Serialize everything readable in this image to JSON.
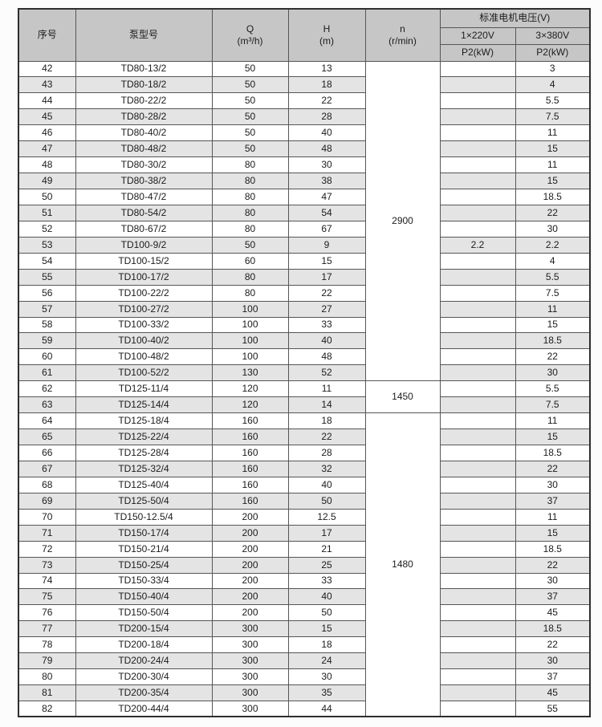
{
  "colors": {
    "page_bg": "#fcfcfc",
    "header_bg": "#c5c6c5",
    "stripe_bg": "#e4e4e4",
    "row_bg": "#ffffff",
    "border": "#565656",
    "outer_border": "#2e2e2e",
    "text": "#1c1c1c"
  },
  "table": {
    "headers": {
      "col_serial": "序号",
      "col_model": "泵型号",
      "col_q_line1": "Q",
      "col_q_line2": "(m³/h)",
      "col_h_line1": "H",
      "col_h_line2": "(m)",
      "col_n_line1": "n",
      "col_n_line2": "(r/min)",
      "voltage_group": "标准电机电压(V)",
      "voltage_1": "1×220V",
      "voltage_3": "3×380V",
      "p2_label_1": "P2(kW)",
      "p2_label_2": "P2(kW)"
    },
    "n_blocks": [
      {
        "value": "2900",
        "span": 20
      },
      {
        "value": "1450",
        "span": 2
      },
      {
        "value": "1480",
        "span": 19
      }
    ],
    "rows": [
      {
        "no": "42",
        "model": "TD80-13/2",
        "q": "50",
        "h": "13",
        "p220": "",
        "p380": "3"
      },
      {
        "no": "43",
        "model": "TD80-18/2",
        "q": "50",
        "h": "18",
        "p220": "",
        "p380": "4"
      },
      {
        "no": "44",
        "model": "TD80-22/2",
        "q": "50",
        "h": "22",
        "p220": "",
        "p380": "5.5"
      },
      {
        "no": "45",
        "model": "TD80-28/2",
        "q": "50",
        "h": "28",
        "p220": "",
        "p380": "7.5"
      },
      {
        "no": "46",
        "model": "TD80-40/2",
        "q": "50",
        "h": "40",
        "p220": "",
        "p380": "11"
      },
      {
        "no": "47",
        "model": "TD80-48/2",
        "q": "50",
        "h": "48",
        "p220": "",
        "p380": "15"
      },
      {
        "no": "48",
        "model": "TD80-30/2",
        "q": "80",
        "h": "30",
        "p220": "",
        "p380": "11"
      },
      {
        "no": "49",
        "model": "TD80-38/2",
        "q": "80",
        "h": "38",
        "p220": "",
        "p380": "15"
      },
      {
        "no": "50",
        "model": "TD80-47/2",
        "q": "80",
        "h": "47",
        "p220": "",
        "p380": "18.5"
      },
      {
        "no": "51",
        "model": "TD80-54/2",
        "q": "80",
        "h": "54",
        "p220": "",
        "p380": "22"
      },
      {
        "no": "52",
        "model": "TD80-67/2",
        "q": "80",
        "h": "67",
        "p220": "",
        "p380": "30"
      },
      {
        "no": "53",
        "model": "TD100-9/2",
        "q": "50",
        "h": "9",
        "p220": "2.2",
        "p380": "2.2"
      },
      {
        "no": "54",
        "model": "TD100-15/2",
        "q": "60",
        "h": "15",
        "p220": "",
        "p380": "4"
      },
      {
        "no": "55",
        "model": "TD100-17/2",
        "q": "80",
        "h": "17",
        "p220": "",
        "p380": "5.5"
      },
      {
        "no": "56",
        "model": "TD100-22/2",
        "q": "80",
        "h": "22",
        "p220": "",
        "p380": "7.5"
      },
      {
        "no": "57",
        "model": "TD100-27/2",
        "q": "100",
        "h": "27",
        "p220": "",
        "p380": "11"
      },
      {
        "no": "58",
        "model": "TD100-33/2",
        "q": "100",
        "h": "33",
        "p220": "",
        "p380": "15"
      },
      {
        "no": "59",
        "model": "TD100-40/2",
        "q": "100",
        "h": "40",
        "p220": "",
        "p380": "18.5"
      },
      {
        "no": "60",
        "model": "TD100-48/2",
        "q": "100",
        "h": "48",
        "p220": "",
        "p380": "22"
      },
      {
        "no": "61",
        "model": "TD100-52/2",
        "q": "130",
        "h": "52",
        "p220": "",
        "p380": "30"
      },
      {
        "no": "62",
        "model": "TD125-11/4",
        "q": "120",
        "h": "11",
        "p220": "",
        "p380": "5.5"
      },
      {
        "no": "63",
        "model": "TD125-14/4",
        "q": "120",
        "h": "14",
        "p220": "",
        "p380": "7.5"
      },
      {
        "no": "64",
        "model": "TD125-18/4",
        "q": "160",
        "h": "18",
        "p220": "",
        "p380": "11"
      },
      {
        "no": "65",
        "model": "TD125-22/4",
        "q": "160",
        "h": "22",
        "p220": "",
        "p380": "15"
      },
      {
        "no": "66",
        "model": "TD125-28/4",
        "q": "160",
        "h": "28",
        "p220": "",
        "p380": "18.5"
      },
      {
        "no": "67",
        "model": "TD125-32/4",
        "q": "160",
        "h": "32",
        "p220": "",
        "p380": "22"
      },
      {
        "no": "68",
        "model": "TD125-40/4",
        "q": "160",
        "h": "40",
        "p220": "",
        "p380": "30"
      },
      {
        "no": "69",
        "model": "TD125-50/4",
        "q": "160",
        "h": "50",
        "p220": "",
        "p380": "37"
      },
      {
        "no": "70",
        "model": "TD150-12.5/4",
        "q": "200",
        "h": "12.5",
        "p220": "",
        "p380": "11"
      },
      {
        "no": "71",
        "model": "TD150-17/4",
        "q": "200",
        "h": "17",
        "p220": "",
        "p380": "15"
      },
      {
        "no": "72",
        "model": "TD150-21/4",
        "q": "200",
        "h": "21",
        "p220": "",
        "p380": "18.5"
      },
      {
        "no": "73",
        "model": "TD150-25/4",
        "q": "200",
        "h": "25",
        "p220": "",
        "p380": "22"
      },
      {
        "no": "74",
        "model": "TD150-33/4",
        "q": "200",
        "h": "33",
        "p220": "",
        "p380": "30"
      },
      {
        "no": "75",
        "model": "TD150-40/4",
        "q": "200",
        "h": "40",
        "p220": "",
        "p380": "37"
      },
      {
        "no": "76",
        "model": "TD150-50/4",
        "q": "200",
        "h": "50",
        "p220": "",
        "p380": "45"
      },
      {
        "no": "77",
        "model": "TD200-15/4",
        "q": "300",
        "h": "15",
        "p220": "",
        "p380": "18.5"
      },
      {
        "no": "78",
        "model": "TD200-18/4",
        "q": "300",
        "h": "18",
        "p220": "",
        "p380": "22"
      },
      {
        "no": "79",
        "model": "TD200-24/4",
        "q": "300",
        "h": "24",
        "p220": "",
        "p380": "30"
      },
      {
        "no": "80",
        "model": "TD200-30/4",
        "q": "300",
        "h": "30",
        "p220": "",
        "p380": "37"
      },
      {
        "no": "81",
        "model": "TD200-35/4",
        "q": "300",
        "h": "35",
        "p220": "",
        "p380": "45"
      },
      {
        "no": "82",
        "model": "TD200-44/4",
        "q": "300",
        "h": "44",
        "p220": "",
        "p380": "55"
      }
    ]
  }
}
